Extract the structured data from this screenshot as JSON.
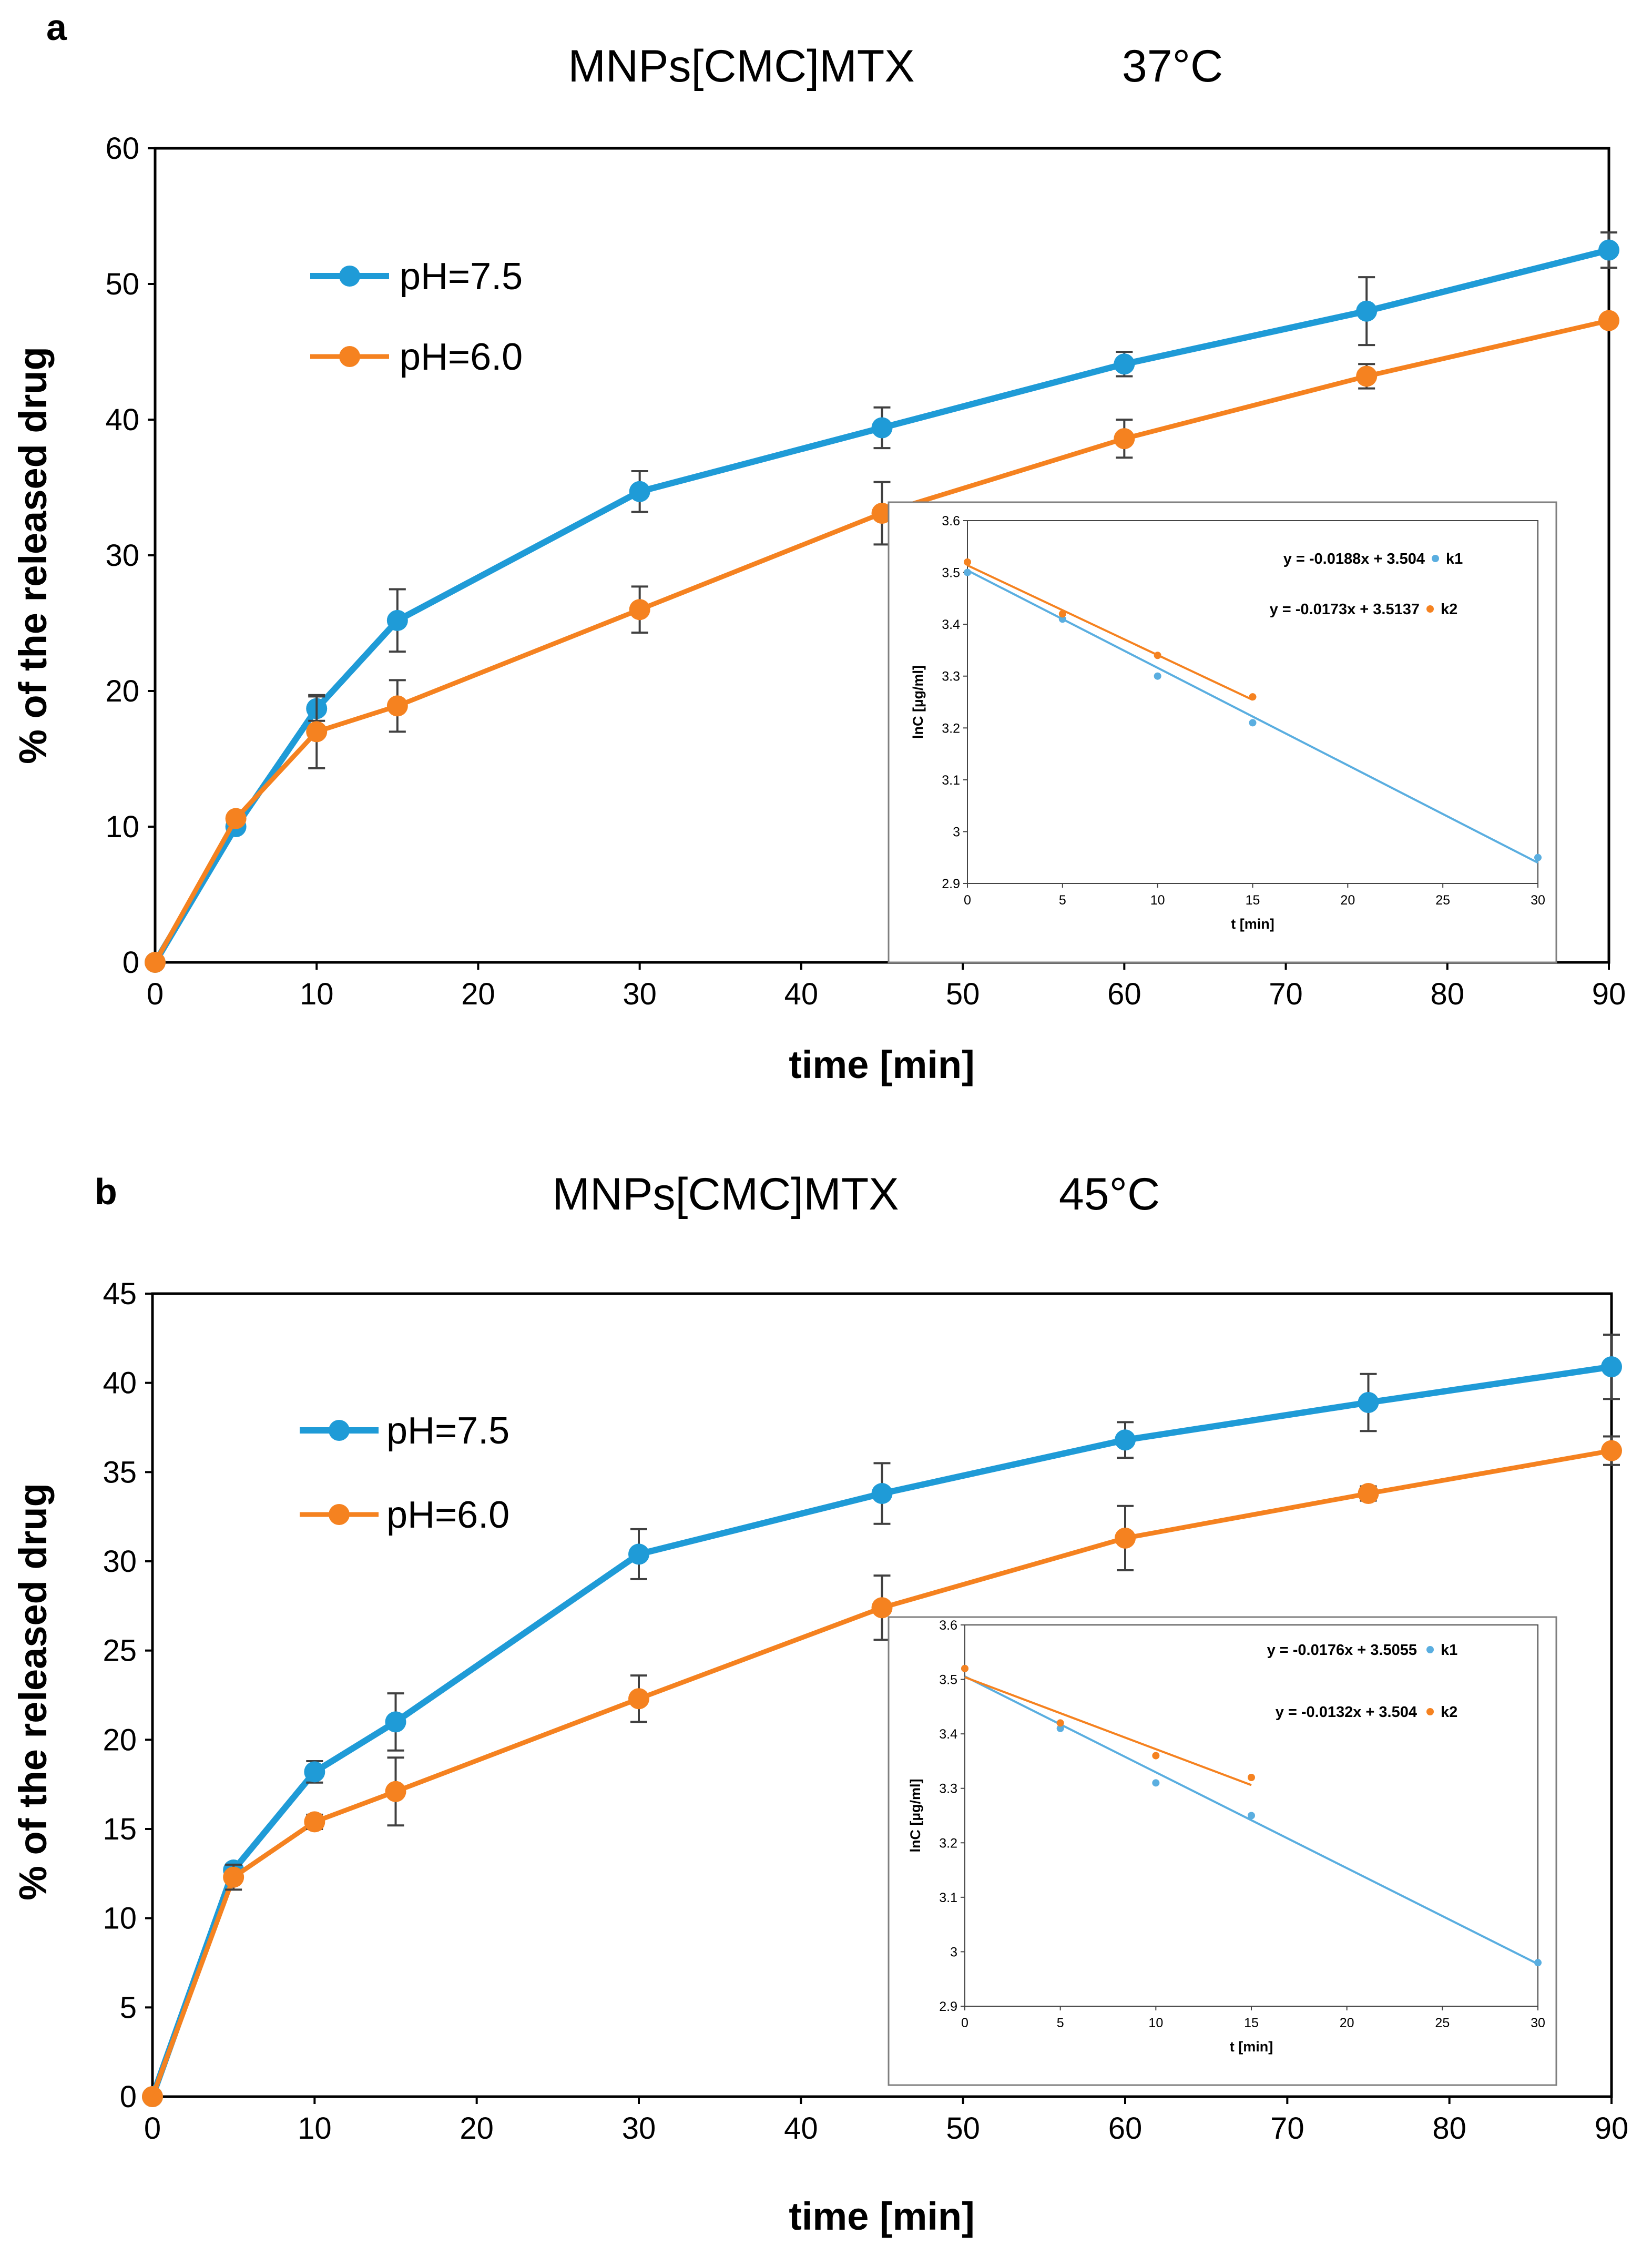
{
  "colors": {
    "ph75": "#1f9bd7",
    "ph60": "#f58220",
    "inset_ph75": "#5aaee0",
    "inset_ph60": "#f58220",
    "axis": "#000000",
    "error": "#404040"
  },
  "chart_data": [
    {
      "type": "line",
      "panel": "a",
      "title": "MNPs[CMC]MTX",
      "temperature": "37°C",
      "xlabel": "time [min]",
      "ylabel": "% of the released drug",
      "xlim": [
        0,
        90
      ],
      "ylim": [
        0,
        60
      ],
      "xticks": [
        0,
        10,
        20,
        30,
        40,
        50,
        60,
        70,
        80,
        90
      ],
      "yticks": [
        0,
        10,
        20,
        30,
        40,
        50,
        60
      ],
      "x": [
        0,
        5,
        10,
        15,
        30,
        45,
        60,
        75,
        90
      ],
      "legend_position": "top-left",
      "series": [
        {
          "name": "pH=7.5",
          "values": [
            0,
            10,
            18.7,
            25.2,
            34.7,
            39.4,
            44.1,
            48,
            52.5
          ],
          "errors": [
            0,
            0,
            0.9,
            2.3,
            1.5,
            1.5,
            0.9,
            2.5,
            1.3
          ]
        },
        {
          "name": "pH=6.0",
          "values": [
            0,
            10.6,
            17,
            18.9,
            26,
            33.1,
            38.6,
            43.2,
            47.3
          ],
          "errors": [
            0,
            0,
            2.7,
            1.9,
            1.7,
            2.3,
            1.4,
            0.9,
            0
          ]
        }
      ],
      "inset": {
        "type": "scatter",
        "xlabel": "t [min]",
        "ylabel": "lnC [µg/ml]",
        "xlim": [
          0,
          30
        ],
        "ylim": [
          2.9,
          3.6
        ],
        "xticks": [
          0,
          5,
          10,
          15,
          20,
          25,
          30
        ],
        "yticks": [
          2.9,
          3,
          3.1,
          3.2,
          3.3,
          3.4,
          3.5,
          3.6
        ],
        "yticks_text": [
          "2.9",
          "3",
          "3.1",
          "3.2",
          "3.3",
          "3.4",
          "3.5",
          "3.6"
        ],
        "series": [
          {
            "name": "k1",
            "equation": "y = -0.0188x + 3.504",
            "slope": -0.0188,
            "intercept": 3.504,
            "x": [
              0,
              5,
              10,
              15,
              30
            ],
            "y": [
              3.5,
              3.41,
              3.3,
              3.21,
              2.95
            ],
            "fit_x": [
              0,
              30
            ]
          },
          {
            "name": "k2",
            "equation": "y = -0.0173x + 3.5137",
            "slope": -0.0173,
            "intercept": 3.5137,
            "x": [
              0,
              5,
              10,
              15
            ],
            "y": [
              3.52,
              3.42,
              3.34,
              3.26
            ],
            "fit_x": [
              0,
              15
            ]
          }
        ]
      }
    },
    {
      "type": "line",
      "panel": "b",
      "title": "MNPs[CMC]MTX",
      "temperature": "45°C",
      "xlabel": "time [min]",
      "ylabel": "% of the released drug",
      "xlim": [
        0,
        90
      ],
      "ylim": [
        0,
        45
      ],
      "xticks": [
        0,
        10,
        20,
        30,
        40,
        50,
        60,
        70,
        80,
        90
      ],
      "yticks": [
        0,
        5,
        10,
        15,
        20,
        25,
        30,
        35,
        40,
        45
      ],
      "x": [
        0,
        5,
        10,
        15,
        30,
        45,
        60,
        75,
        90
      ],
      "legend_position": "top-left",
      "series": [
        {
          "name": "pH=7.5",
          "values": [
            0,
            12.7,
            18.2,
            21,
            30.4,
            33.8,
            36.8,
            38.9,
            40.9
          ],
          "errors": [
            0,
            0,
            0.6,
            1.6,
            1.4,
            1.7,
            1,
            1.6,
            1.8
          ]
        },
        {
          "name": "pH=6.0",
          "values": [
            0,
            12.3,
            15.4,
            17.1,
            22.3,
            27.4,
            31.3,
            33.8,
            36.2
          ],
          "errors": [
            0,
            0.7,
            0.4,
            1.9,
            1.3,
            1.8,
            1.8,
            0.4,
            0.8
          ]
        }
      ],
      "inset": {
        "type": "scatter",
        "xlabel": "t [min]",
        "ylabel": "lnC [µg/ml]",
        "xlim": [
          0,
          30
        ],
        "ylim": [
          2.9,
          3.6
        ],
        "xticks": [
          0,
          5,
          10,
          15,
          20,
          25,
          30
        ],
        "yticks": [
          2.9,
          3,
          3.1,
          3.2,
          3.3,
          3.4,
          3.5,
          3.6
        ],
        "yticks_text": [
          "2.9",
          "3",
          "3.1",
          "3.2",
          "3.3",
          "3.4",
          "3.5",
          "3.6"
        ],
        "series": [
          {
            "name": "k1",
            "equation": "y = -0.0176x + 3.5055",
            "slope": -0.0176,
            "intercept": 3.5055,
            "x": [
              0,
              5,
              10,
              15,
              30
            ],
            "y": [
              3.52,
              3.41,
              3.31,
              3.25,
              2.98
            ],
            "fit_x": [
              0,
              30
            ]
          },
          {
            "name": "k2",
            "equation": "y = -0.0132x + 3.504",
            "slope": -0.0132,
            "intercept": 3.504,
            "x": [
              0,
              5,
              10,
              15
            ],
            "y": [
              3.52,
              3.42,
              3.36,
              3.32
            ],
            "fit_x": [
              0,
              15
            ]
          }
        ]
      }
    }
  ]
}
